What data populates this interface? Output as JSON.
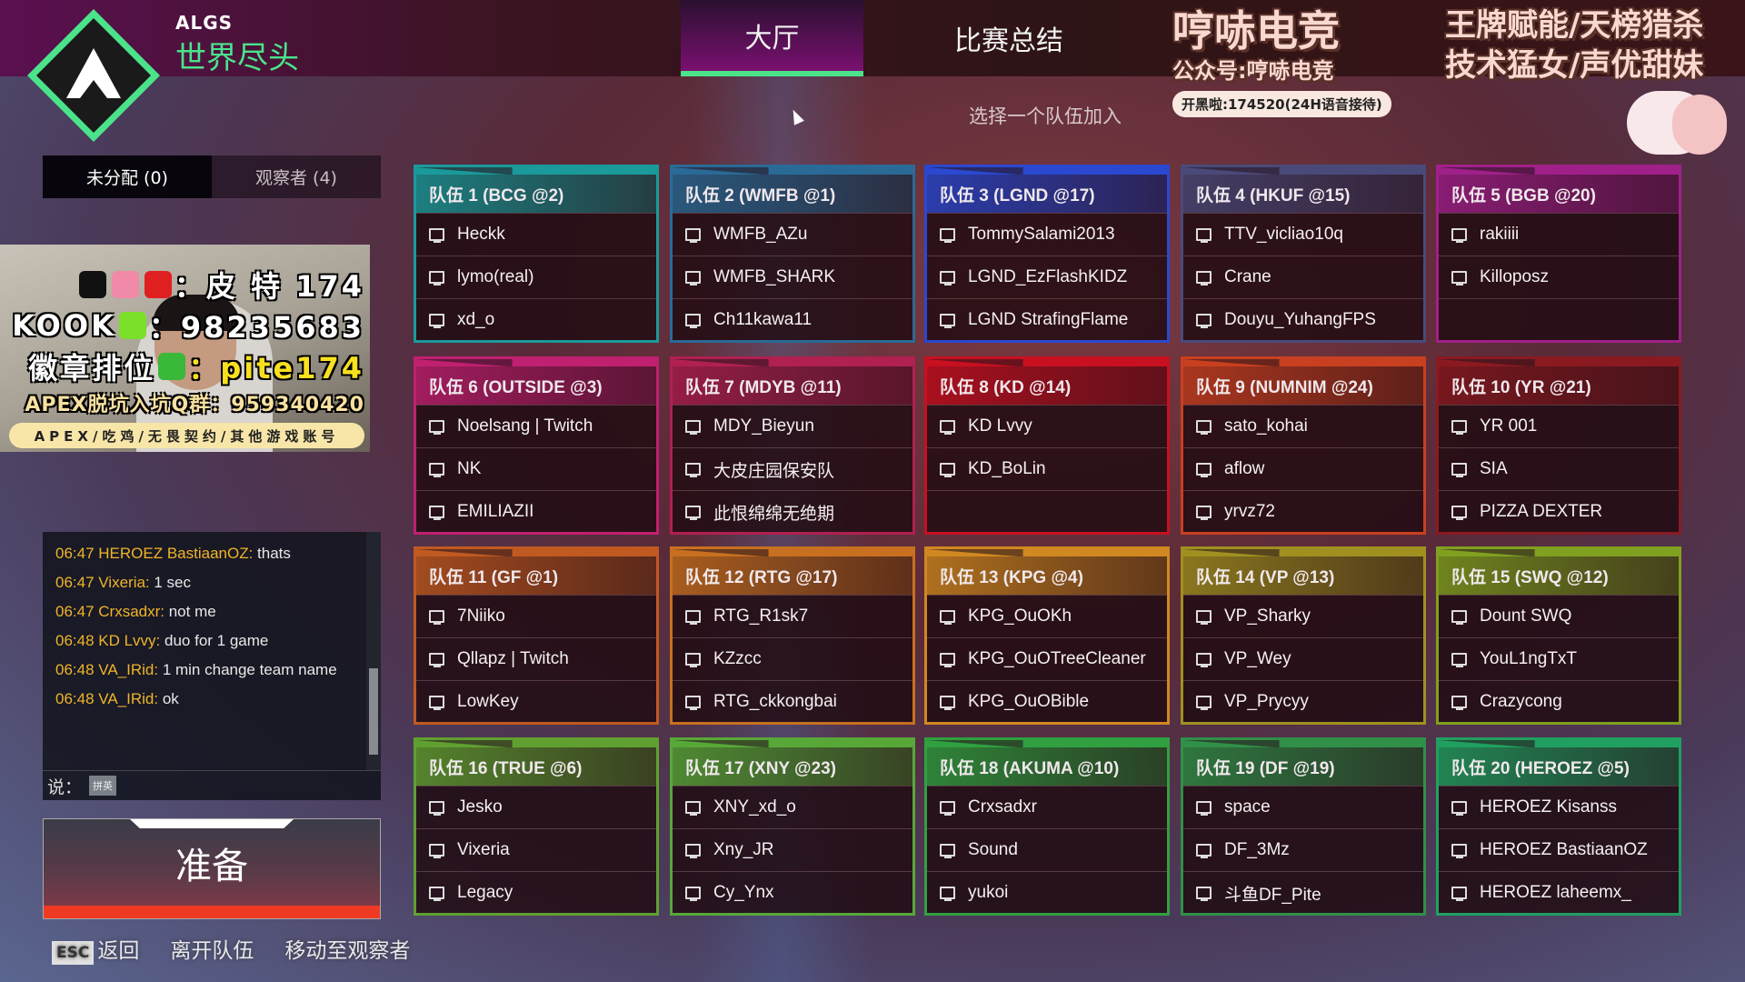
{
  "header": {
    "event": "ALGS",
    "map": "世界尽头",
    "tabs": [
      {
        "label": "大厅",
        "active": true
      },
      {
        "label": "比赛总结",
        "active": false
      }
    ],
    "subtitle": "选择一个队伍加入"
  },
  "left": {
    "tabs": [
      {
        "label": "未分配 (0)"
      },
      {
        "label": "观察者 (4)"
      }
    ],
    "chat": [
      {
        "ts": "06:47 HEROEZ BastiaanOZ:",
        "msg": " thats"
      },
      {
        "ts": "06:47 Vixeria:",
        "msg": " 1 sec"
      },
      {
        "ts": "06:47 Crxsadxr:",
        "msg": " not me"
      },
      {
        "ts": "06:48 KD Lvvy:",
        "msg": " duo for 1 game"
      },
      {
        "ts": "06:48 VA_IRid:",
        "msg": " 1 min change team name"
      },
      {
        "ts": "06:48 VA_IRid:",
        "msg": " ok"
      }
    ],
    "say_label": "说：",
    "ime_label": "拼英",
    "ready_label": "准备"
  },
  "bottom_nav": {
    "esc_key": "ESC",
    "back": "返回",
    "leave": "离开队伍",
    "move_spectator": "移动至观察者"
  },
  "teams": [
    {
      "name": "队伍 1 (BCG @2)",
      "color": "#1a9a9a",
      "players": [
        "Heckk",
        "lymo(real)",
        "xd_o"
      ]
    },
    {
      "name": "队伍 2 (WMFB @1)",
      "color": "#2a6a96",
      "players": [
        "WMFB_AZu",
        "WMFB_SHARK",
        "Ch11kawa11"
      ]
    },
    {
      "name": "队伍 3 (LGND @17)",
      "color": "#2a48d0",
      "players": [
        "TommySalami2013",
        "LGND_EzFlashKIDZ",
        "LGND StrafingFlame"
      ]
    },
    {
      "name": "队伍 4 (HKUF @15)",
      "color": "#4a4a7a",
      "players": [
        "TTV_vicliao10q",
        "Crane",
        "Douyu_YuhangFPS"
      ]
    },
    {
      "name": "队伍 5 (BGB @20)",
      "color": "#a0208a",
      "players": [
        "rakiiii",
        "Killoposz",
        ""
      ]
    },
    {
      "name": "队伍 6 (OUTSIDE @3)",
      "color": "#c02070",
      "players": [
        "Noelsang | Twitch",
        "NK",
        "EMILIAZII"
      ]
    },
    {
      "name": "队伍 7 (MDYB @11)",
      "color": "#b02050",
      "players": [
        "MDY_Bieyun",
        "大皮庄园保安队",
        "此恨绵绵无绝期"
      ]
    },
    {
      "name": "队伍 8 (KD @14)",
      "color": "#c81020",
      "players": [
        "KD Lvvy",
        "KD_BoLin",
        ""
      ]
    },
    {
      "name": "队伍 9 (NUMNIM @24)",
      "color": "#c84020",
      "players": [
        "sato_kohai",
        "aflow",
        "yrvz72"
      ]
    },
    {
      "name": "队伍 10 (YR @21)",
      "color": "#8a1a20",
      "players": [
        "YR 001",
        "SIA",
        "PIZZA DEXTER"
      ]
    },
    {
      "name": "队伍 11 (GF @1)",
      "color": "#c05a20",
      "players": [
        "7Niiko",
        "Qllapz | Twitch",
        "LowKey"
      ]
    },
    {
      "name": "队伍 12 (RTG @17)",
      "color": "#c87020",
      "players": [
        "RTG_R1sk7",
        "KZzcc",
        "RTG_ckkongbai"
      ]
    },
    {
      "name": "队伍 13 (KPG @4)",
      "color": "#d08820",
      "players": [
        "KPG_OuOKh",
        "KPG_OuOTreeCleaner",
        "KPG_OuOBible"
      ]
    },
    {
      "name": "队伍 14 (VP @13)",
      "color": "#a09020",
      "players": [
        "VP_Sharky",
        "VP_Wey",
        "VP_Prycyy"
      ]
    },
    {
      "name": "队伍 15 (SWQ @12)",
      "color": "#80a020",
      "players": [
        "Dount SWQ",
        "YouL1ngTxT",
        "Crazycong"
      ]
    },
    {
      "name": "队伍 16 (TRUE @6)",
      "color": "#60a030",
      "players": [
        "Jesko",
        "Vixeria",
        "Legacy"
      ]
    },
    {
      "name": "队伍 17 (XNY @23)",
      "color": "#58a838",
      "players": [
        "XNY_xd_o",
        "Xny_JR",
        "Cy_Ynx"
      ]
    },
    {
      "name": "队伍 18 (AKUMA @10)",
      "color": "#30a040",
      "players": [
        "Crxsadxr",
        "Sound",
        "yukoi"
      ]
    },
    {
      "name": "队伍 19 (DF @19)",
      "color": "#309048",
      "players": [
        "space",
        "DF_3Mz",
        "斗鱼DF_Pite"
      ]
    },
    {
      "name": "队伍 20 (HEROEZ @5)",
      "color": "#20a060",
      "players": [
        "HEROEZ Kisanss",
        "HEROEZ BastiaanOZ",
        "HEROEZ laheemx_"
      ]
    }
  ],
  "overlay_left": {
    "line1": "：皮 特 174",
    "line2_label": "KOOK",
    "line2_value": "：98235683",
    "line3_label": "徽章排位",
    "line3_value": "：pite174",
    "line4": "APEX脱坑入坑Q群：959340420",
    "pill": "APEX/吃鸡/无畏契约/其他游戏账号"
  },
  "overlay_right": {
    "title": "哼哧电竞",
    "line1": "王牌赋能/天榜猎杀",
    "line2": "技术猛女/声优甜妹",
    "line3": "公众号:哼哧电竞",
    "line4": "开黑啦:174520(24H语音接待)"
  },
  "accent_color": "#4be38a"
}
